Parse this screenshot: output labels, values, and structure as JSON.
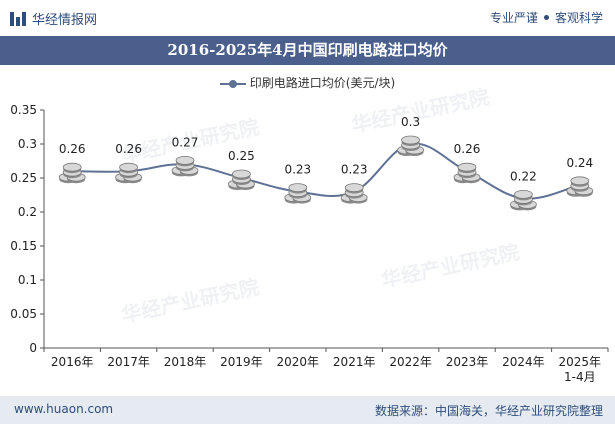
{
  "header": {
    "brand": "华经情报网",
    "slogan_left": "专业严谨",
    "slogan_right": "客观科学"
  },
  "footer": {
    "site": "www.huaon.com",
    "source": "数据来源：中国海关，华经产业研究院整理"
  },
  "chart_data": {
    "type": "line",
    "title": "2016-2025年4月中国印刷电路进口均价",
    "series": [
      {
        "name": "印刷电路进口均价(美元/块)",
        "values": [
          0.26,
          0.26,
          0.27,
          0.25,
          0.23,
          0.23,
          0.3,
          0.26,
          0.22,
          0.24
        ]
      }
    ],
    "categories": [
      "2016年",
      "2017年",
      "2018年",
      "2019年",
      "2020年",
      "2021年",
      "2022年",
      "2023年",
      "2024年",
      "2025年\n1-4月"
    ],
    "y_ticks": [
      "0",
      "0.05",
      "0.1",
      "0.15",
      "0.2",
      "0.25",
      "0.3",
      "0.35"
    ],
    "data_labels": [
      "0.26",
      "0.26",
      "0.27",
      "0.25",
      "0.23",
      "0.23",
      "0.3",
      "0.26",
      "0.22",
      "0.24"
    ],
    "ylim": [
      0,
      0.35
    ],
    "xlabel": "",
    "ylabel": "",
    "legend_position": "top-center",
    "line_color": "#5f7194"
  }
}
